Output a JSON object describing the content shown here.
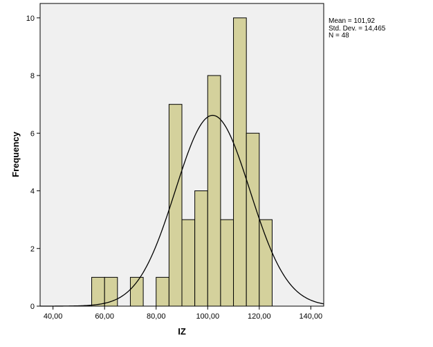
{
  "chart_data": {
    "type": "bar",
    "subtype": "histogram",
    "xlabel": "IZ",
    "ylabel": "Frequency",
    "xlim": [
      35,
      145
    ],
    "ylim": [
      0,
      10.5
    ],
    "x_ticks": [
      {
        "value": 40,
        "label": "40,00"
      },
      {
        "value": 60,
        "label": "60,00"
      },
      {
        "value": 80,
        "label": "80,00"
      },
      {
        "value": 100,
        "label": "100,00"
      },
      {
        "value": 120,
        "label": "120,00"
      },
      {
        "value": 140,
        "label": "140,00"
      }
    ],
    "y_ticks": [
      {
        "value": 0,
        "label": "0"
      },
      {
        "value": 2,
        "label": "2"
      },
      {
        "value": 4,
        "label": "4"
      },
      {
        "value": 6,
        "label": "6"
      },
      {
        "value": 8,
        "label": "8"
      },
      {
        "value": 10,
        "label": "10"
      }
    ],
    "bins": [
      {
        "start": 55,
        "end": 60,
        "count": 1
      },
      {
        "start": 60,
        "end": 65,
        "count": 1
      },
      {
        "start": 65,
        "end": 70,
        "count": 0
      },
      {
        "start": 70,
        "end": 75,
        "count": 1
      },
      {
        "start": 75,
        "end": 80,
        "count": 0
      },
      {
        "start": 80,
        "end": 85,
        "count": 1
      },
      {
        "start": 85,
        "end": 90,
        "count": 7
      },
      {
        "start": 90,
        "end": 95,
        "count": 3
      },
      {
        "start": 95,
        "end": 100,
        "count": 4
      },
      {
        "start": 100,
        "end": 105,
        "count": 8
      },
      {
        "start": 105,
        "end": 110,
        "count": 3
      },
      {
        "start": 110,
        "end": 115,
        "count": 10
      },
      {
        "start": 115,
        "end": 120,
        "count": 6
      },
      {
        "start": 120,
        "end": 125,
        "count": 3
      }
    ],
    "normal_curve": {
      "mean": 101.92,
      "std_dev": 14.465,
      "n": 48,
      "bin_width": 5
    },
    "stats_text": [
      "Mean = 101,92",
      "Std. Dev. = 14,465",
      "N = 48"
    ],
    "bar_color": "#d4d19c",
    "bar_edge_color": "#000000",
    "plot_background": "#f0f0f0",
    "grid": false,
    "legend": "none"
  }
}
